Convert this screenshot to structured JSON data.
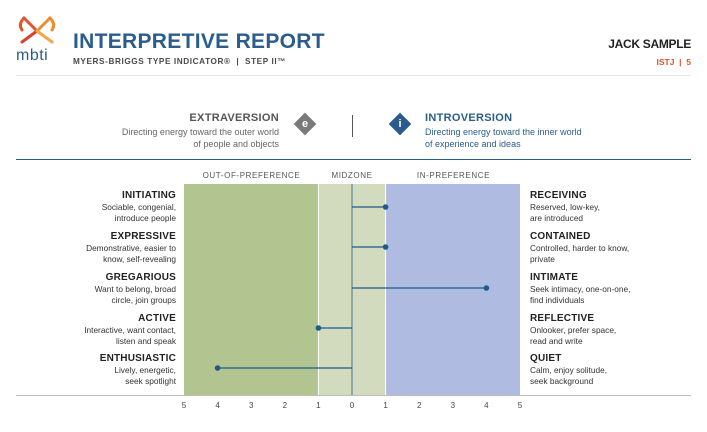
{
  "header": {
    "logo_text": "mbti",
    "title": "INTERPRETIVE REPORT",
    "subtitle": "MYERS-BRIGGS TYPE INDICATOR®  |  STEP II™",
    "client_name": "JACK SAMPLE",
    "client_code": "ISTJ  |  5"
  },
  "dichotomy": {
    "left": {
      "title": "EXTRAVERSION",
      "letter": "e",
      "desc_line1": "Directing energy toward the outer world",
      "desc_line2": "of people and objects"
    },
    "right": {
      "title": "INTROVERSION",
      "letter": "i",
      "desc_line1": "Directing energy toward the inner world",
      "desc_line2": "of experience and ideas"
    }
  },
  "zones": {
    "out": "OUT-OF-PREFERENCE",
    "mid": "MIDZONE",
    "in": "IN-PREFERENCE"
  },
  "colors": {
    "out_zone": "#b2c490",
    "mid_zone": "#d2dbbd",
    "in_zone": "#afbbe0",
    "accent_blue": "#2b5d8c",
    "accent_orange": "#e2532b",
    "marker": "#1f5a8c"
  },
  "chart_data": {
    "type": "scatter",
    "x_ticks": [
      "5",
      "4",
      "3",
      "2",
      "1",
      "0",
      "1",
      "2",
      "3",
      "4",
      "5"
    ],
    "xlim": [
      -5,
      5
    ],
    "facets": [
      {
        "left_name": "INITIATING",
        "left_desc1": "Sociable, congenial,",
        "left_desc2": "introduce people",
        "right_name": "RECEIVING",
        "right_desc1": "Reserved, low-key,",
        "right_desc2": "are introduced",
        "score": 1
      },
      {
        "left_name": "EXPRESSIVE",
        "left_desc1": "Demonstrative, easier to",
        "left_desc2": "know, self-revealing",
        "right_name": "CONTAINED",
        "right_desc1": "Controlled, harder to know,",
        "right_desc2": "private",
        "score": 1
      },
      {
        "left_name": "GREGARIOUS",
        "left_desc1": "Want to belong, broad",
        "left_desc2": "circle, join groups",
        "right_name": "INTIMATE",
        "right_desc1": "Seek intimacy, one-on-one,",
        "right_desc2": "find individuals",
        "score": 4
      },
      {
        "left_name": "ACTIVE",
        "left_desc1": "Interactive, want contact,",
        "left_desc2": "listen and speak",
        "right_name": "REFLECTIVE",
        "right_desc1": "Onlooker, prefer space,",
        "right_desc2": "read and write",
        "score": -1
      },
      {
        "left_name": "ENTHUSIASTIC",
        "left_desc1": "Lively, energetic,",
        "left_desc2": "seek spotlight",
        "right_name": "QUIET",
        "right_desc1": "Calm, enjoy solitude,",
        "right_desc2": "seek background",
        "score": -4
      }
    ]
  }
}
